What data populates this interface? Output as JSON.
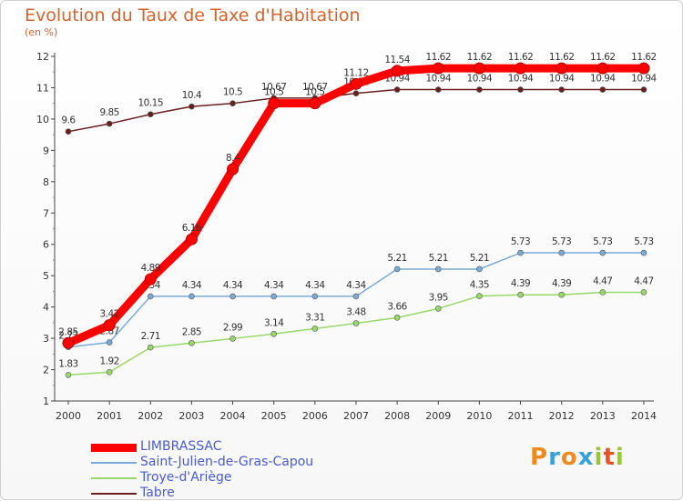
{
  "title": "Evolution du Taux de Taxe d'Habitation",
  "subtitle": "(en %)",
  "logo": "Proxiti",
  "chart_data": {
    "type": "line",
    "title": "Evolution du Taux de Taxe d'Habitation",
    "ylabel": "(en %)",
    "xlabel": "",
    "ylim": [
      1,
      12
    ],
    "yticks": [
      "1",
      "2",
      "3",
      "4",
      "5",
      "6",
      "7",
      "8",
      "9",
      "10",
      "11",
      "12"
    ],
    "x": [
      "2000",
      "2001",
      "2002",
      "2003",
      "2004",
      "2005",
      "2006",
      "2007",
      "2008",
      "2009",
      "2010",
      "2011",
      "2012",
      "2013",
      "2014"
    ],
    "grid": false,
    "legend_position": "bottom-left",
    "series": [
      {
        "name": "Tabre",
        "color": "#6b1e1e",
        "values": [
          9.6,
          9.85,
          10.15,
          10.4,
          10.5,
          10.67,
          10.67,
          10.82,
          10.94,
          10.94,
          10.94,
          10.94,
          10.94,
          10.94,
          10.94
        ],
        "labels": [
          "9.6",
          "9.85",
          "10.15",
          "10.4",
          "10.5",
          "10.67",
          "10.67",
          "10.82",
          "10.94",
          "10.94",
          "10.94",
          "10.94",
          "10.94",
          "10.94",
          "10.94"
        ]
      },
      {
        "name": "Troye-d'Ariège",
        "color": "#98d86a",
        "values": [
          1.83,
          1.92,
          2.71,
          2.85,
          2.99,
          3.14,
          3.31,
          3.48,
          3.66,
          3.95,
          4.35,
          4.39,
          4.39,
          4.47,
          4.47
        ],
        "labels": [
          "1.83",
          "1.92",
          "2.71",
          "2.85",
          "2.99",
          "3.14",
          "3.31",
          "3.48",
          "3.66",
          "3.95",
          "4.35",
          "4.39",
          "4.39",
          "4.47",
          "4.47"
        ]
      },
      {
        "name": "Saint-Julien-de-Gras-Capou",
        "color": "#7aaad8",
        "values": [
          2.72,
          2.87,
          4.34,
          4.34,
          4.34,
          4.34,
          4.34,
          4.34,
          5.21,
          5.21,
          5.21,
          5.73,
          5.73,
          5.73,
          5.73
        ],
        "labels": [
          "2.72",
          "2.87",
          "4.34",
          "4.34",
          "4.34",
          "4.34",
          "4.34",
          "4.34",
          "5.21",
          "5.21",
          "5.21",
          "5.73",
          "5.73",
          "5.73",
          "5.73"
        ]
      },
      {
        "name": "LIMBRASSAC",
        "color": "#ff0000",
        "values": [
          2.85,
          3.42,
          4.89,
          6.16,
          8.4,
          10.5,
          10.5,
          11.12,
          11.54,
          11.62,
          11.62,
          11.62,
          11.62,
          11.62,
          11.62
        ],
        "labels": [
          "2.85",
          "3.42",
          "4.89",
          "6.16",
          "8.4",
          "10.5",
          "10.5",
          "11.12",
          "11.54",
          "11.62",
          "11.62",
          "11.62",
          "11.62",
          "11.62",
          "11.62"
        ]
      }
    ]
  },
  "legend": [
    {
      "label": "LIMBRASSAC",
      "color": "#ff0000"
    },
    {
      "label": "Saint-Julien-de-Gras-Capou",
      "color": "#7aaad8"
    },
    {
      "label": "Troye-d'Ariège",
      "color": "#98d86a"
    },
    {
      "label": "Tabre",
      "color": "#6b1e1e"
    }
  ]
}
